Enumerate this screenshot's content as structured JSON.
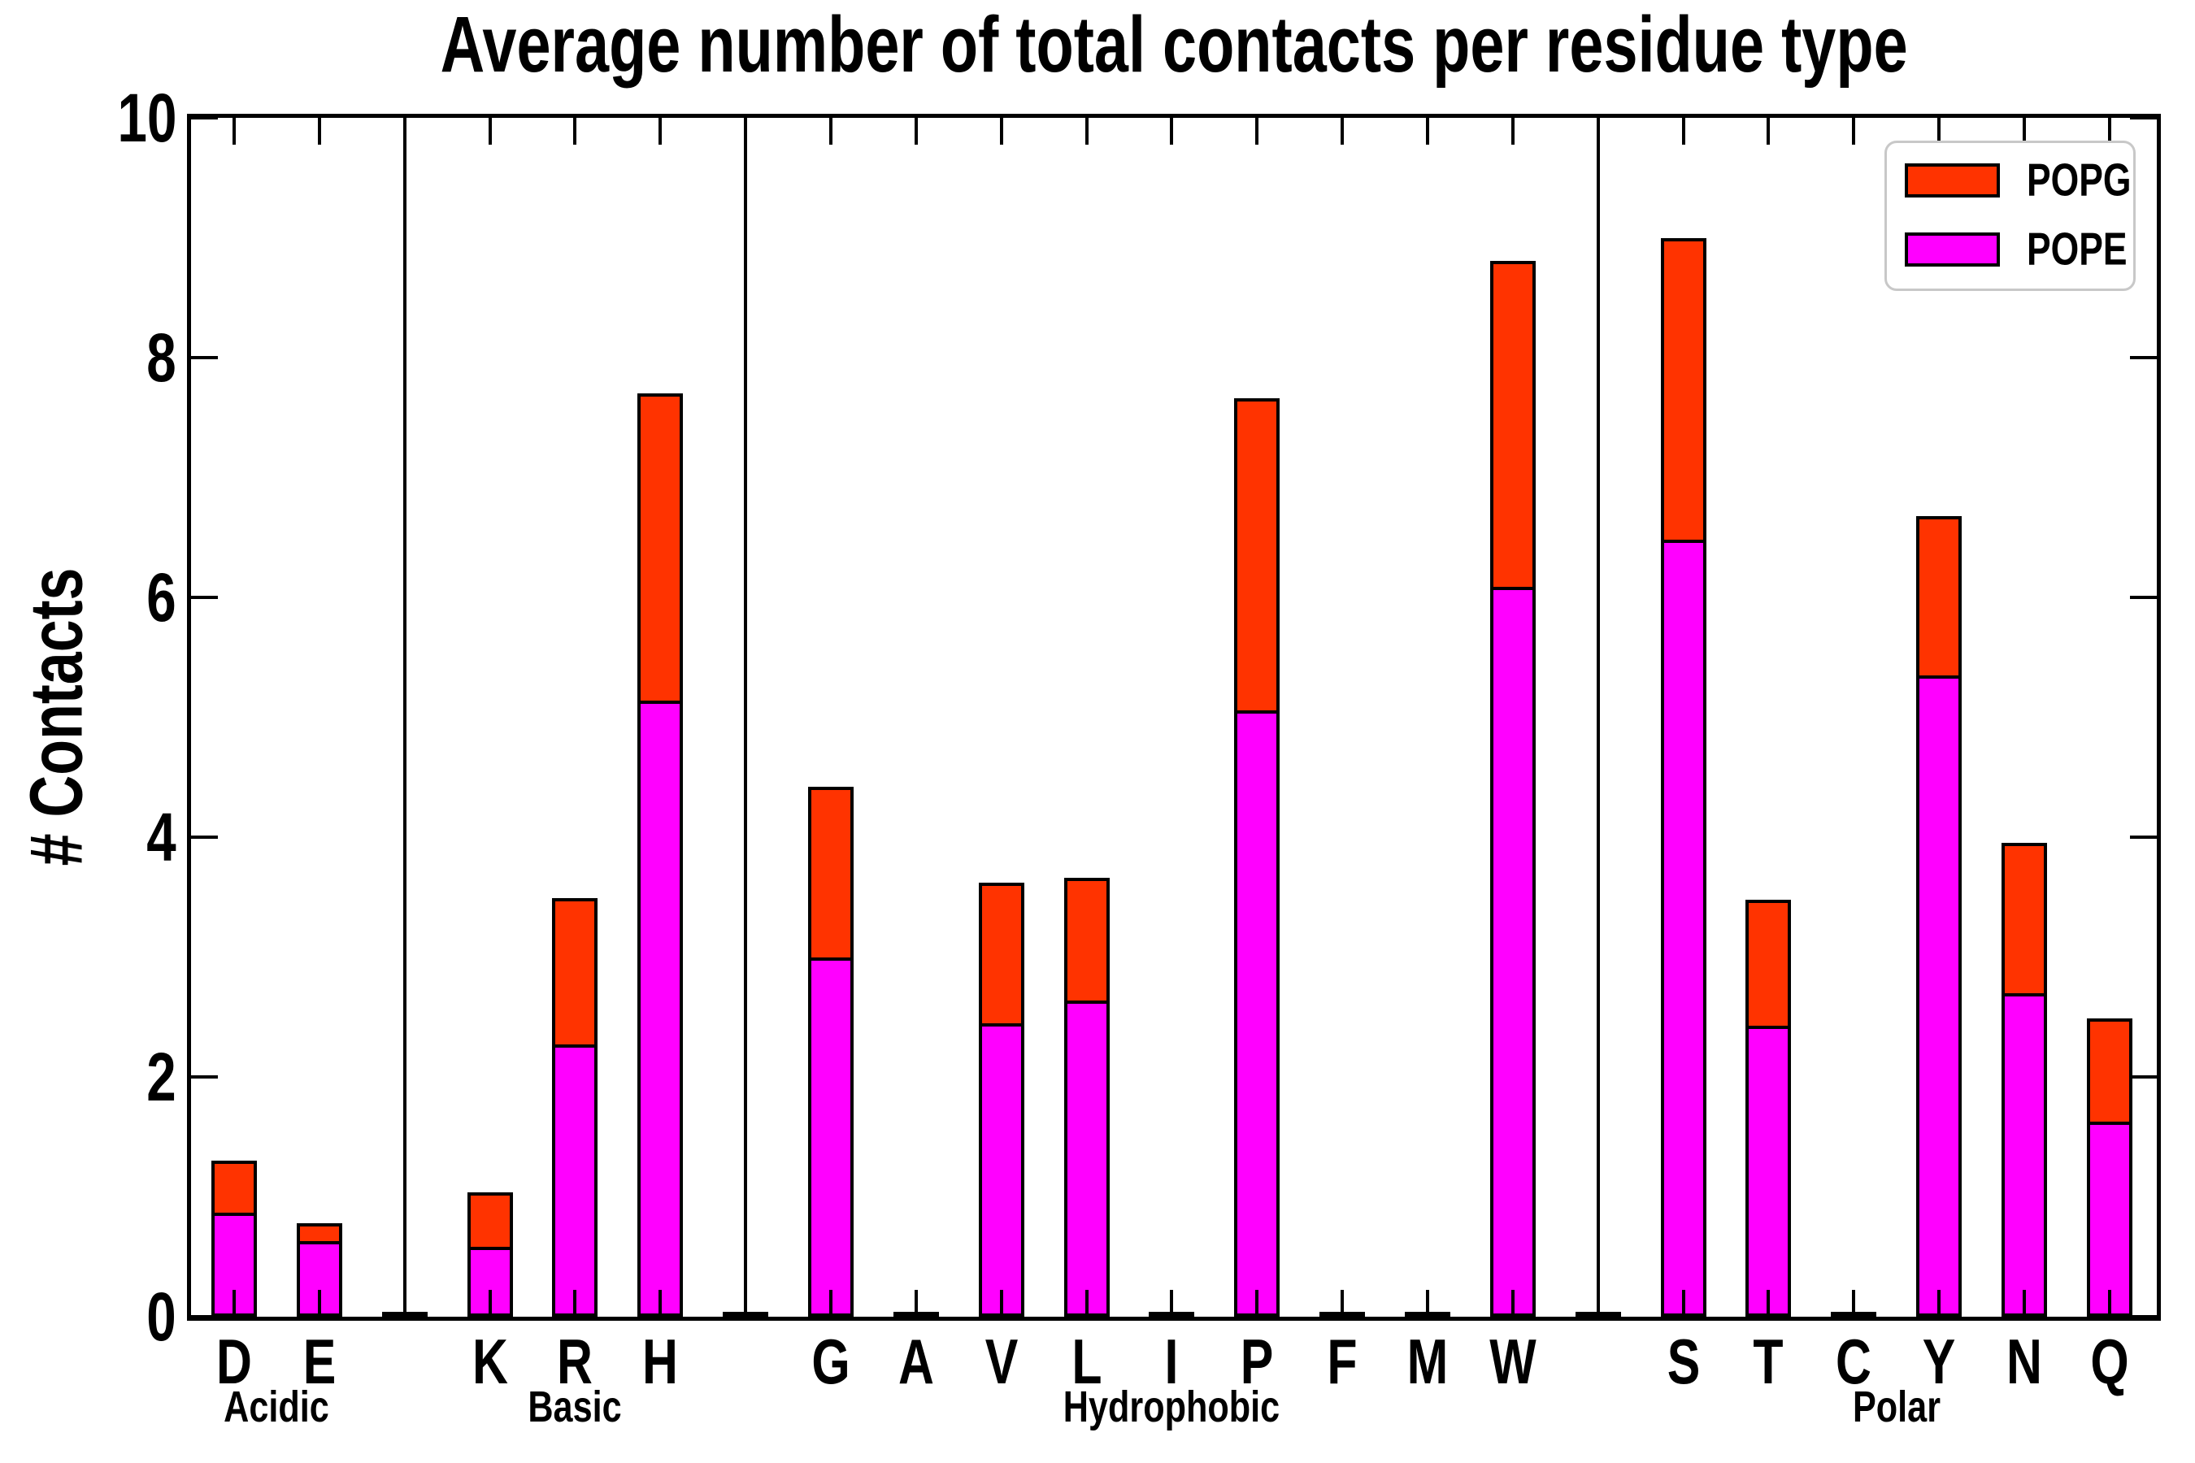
{
  "title": "Average number of total contacts per residue type",
  "y_axis": {
    "label": "# Contacts",
    "tick_labels": [
      "0",
      "2",
      "4",
      "6",
      "8",
      "10"
    ],
    "range": [
      0,
      10
    ]
  },
  "x_axis": {
    "group_labels": [
      "Acidic",
      "Basic",
      "Hydrophobic",
      "Polar"
    ]
  },
  "legend": {
    "items": [
      {
        "label": "POPG",
        "color": "#ff3300"
      },
      {
        "label": "POPE",
        "color": "#ff00ff"
      }
    ]
  },
  "chart_data": {
    "type": "bar",
    "stacked": true,
    "title": "Average number of total contacts per residue type",
    "xlabel": "",
    "ylabel": "# Contacts",
    "ylim": [
      0,
      10
    ],
    "yticks": [
      0,
      2,
      4,
      6,
      8,
      10
    ],
    "grid": false,
    "legend_position": "upper-right",
    "legend_order": [
      "POPG",
      "POPE"
    ],
    "colors": {
      "POPE": "#ff00ff",
      "POPG": "#ff3300"
    },
    "categories": [
      "D",
      "E",
      "K",
      "R",
      "H",
      "G",
      "A",
      "V",
      "L",
      "I",
      "P",
      "F",
      "M",
      "W",
      "S",
      "T",
      "C",
      "Y",
      "N",
      "Q"
    ],
    "groups": [
      {
        "label": "Acidic",
        "categories": [
          "D",
          "E"
        ]
      },
      {
        "label": "Basic",
        "categories": [
          "K",
          "R",
          "H"
        ]
      },
      {
        "label": "Hydrophobic",
        "categories": [
          "G",
          "A",
          "V",
          "L",
          "I",
          "P",
          "F",
          "M",
          "W"
        ]
      },
      {
        "label": "Polar",
        "categories": [
          "S",
          "T",
          "C",
          "Y",
          "N",
          "Q"
        ]
      }
    ],
    "series": [
      {
        "name": "POPE",
        "color": "#ff00ff",
        "values": [
          0.87,
          0.63,
          0.58,
          2.27,
          5.14,
          3.0,
          0,
          2.45,
          2.64,
          0,
          5.06,
          0,
          0,
          6.09,
          6.48,
          2.43,
          0,
          5.35,
          2.7,
          1.63
        ]
      },
      {
        "name": "POPG",
        "color": "#ff3300",
        "values": [
          0.43,
          0.15,
          0.46,
          1.22,
          2.56,
          1.42,
          0,
          1.17,
          1.02,
          0,
          2.6,
          0,
          0,
          2.72,
          2.52,
          1.05,
          0,
          1.33,
          1.25,
          0.86
        ]
      }
    ],
    "totals": [
      1.3,
      0.78,
      1.04,
      3.49,
      7.7,
      4.42,
      0,
      3.62,
      3.66,
      0,
      7.66,
      0,
      0,
      8.81,
      9.0,
      3.48,
      0,
      6.68,
      3.95,
      2.49
    ]
  }
}
